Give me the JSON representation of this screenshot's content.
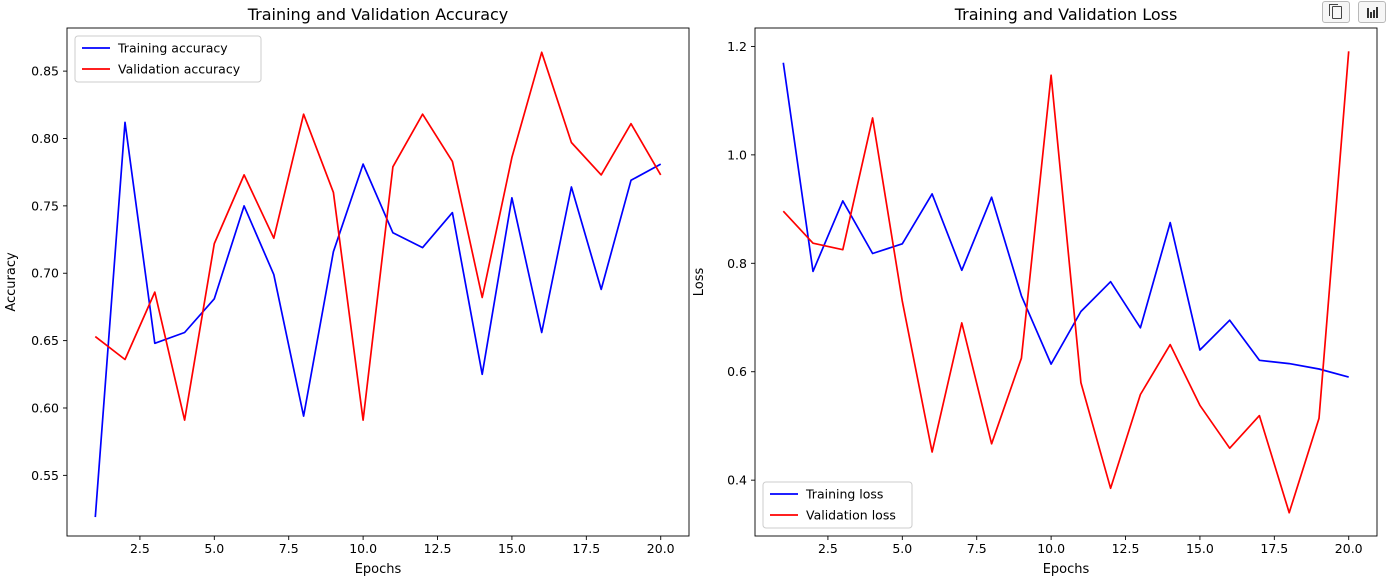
{
  "toolbar": {
    "copy_icon": "copy-icon",
    "chart_icon": "bar-chart-icon"
  },
  "chart_data": [
    {
      "type": "line",
      "title": "Training and Validation Accuracy",
      "xlabel": "Epochs",
      "ylabel": "Accuracy",
      "xlim": [
        0.05,
        20.95
      ],
      "ylim": [
        0.505,
        0.882
      ],
      "xticks": [
        2.5,
        5.0,
        7.5,
        10.0,
        12.5,
        15.0,
        17.5,
        20.0
      ],
      "xtick_labels": [
        "2.5",
        "5.0",
        "7.5",
        "10.0",
        "12.5",
        "15.0",
        "17.5",
        "20.0"
      ],
      "yticks": [
        0.55,
        0.6,
        0.65,
        0.7,
        0.75,
        0.8,
        0.85
      ],
      "ytick_labels": [
        "0.55",
        "0.60",
        "0.65",
        "0.70",
        "0.75",
        "0.80",
        "0.85"
      ],
      "grid": false,
      "legend_position": "top-left",
      "x": [
        1,
        2,
        3,
        4,
        5,
        6,
        7,
        8,
        9,
        10,
        11,
        12,
        13,
        14,
        15,
        16,
        17,
        18,
        19,
        20
      ],
      "series": [
        {
          "name": "Training accuracy",
          "color": "#0000ff",
          "values": [
            0.519,
            0.812,
            0.648,
            0.656,
            0.681,
            0.75,
            0.699,
            0.594,
            0.716,
            0.781,
            0.73,
            0.719,
            0.745,
            0.625,
            0.756,
            0.656,
            0.764,
            0.688,
            0.769,
            0.781
          ]
        },
        {
          "name": "Validation accuracy",
          "color": "#ff0000",
          "values": [
            0.653,
            0.636,
            0.686,
            0.591,
            0.722,
            0.773,
            0.726,
            0.818,
            0.76,
            0.591,
            0.779,
            0.818,
            0.783,
            0.682,
            0.786,
            0.864,
            0.797,
            0.773,
            0.811,
            0.773
          ]
        }
      ]
    },
    {
      "type": "line",
      "title": "Training and Validation Loss",
      "xlabel": "Epochs",
      "ylabel": "Loss",
      "xlim": [
        0.05,
        20.95
      ],
      "ylim": [
        0.297,
        1.234
      ],
      "xticks": [
        2.5,
        5.0,
        7.5,
        10.0,
        12.5,
        15.0,
        17.5,
        20.0
      ],
      "xtick_labels": [
        "2.5",
        "5.0",
        "7.5",
        "10.0",
        "12.5",
        "15.0",
        "17.5",
        "20.0"
      ],
      "yticks": [
        0.4,
        0.6,
        0.8,
        1.0,
        1.2
      ],
      "ytick_labels": [
        "0.4",
        "0.6",
        "0.8",
        "1.0",
        "1.2"
      ],
      "grid": false,
      "legend_position": "bottom-left",
      "x": [
        1,
        2,
        3,
        4,
        5,
        6,
        7,
        8,
        9,
        10,
        11,
        12,
        13,
        14,
        15,
        16,
        17,
        18,
        19,
        20
      ],
      "series": [
        {
          "name": "Training loss",
          "color": "#0000ff",
          "values": [
            1.17,
            0.785,
            0.915,
            0.818,
            0.836,
            0.928,
            0.787,
            0.922,
            0.74,
            0.614,
            0.711,
            0.766,
            0.681,
            0.875,
            0.64,
            0.695,
            0.621,
            0.615,
            0.605,
            0.59
          ]
        },
        {
          "name": "Validation loss",
          "color": "#ff0000",
          "values": [
            0.896,
            0.837,
            0.825,
            1.068,
            0.73,
            0.452,
            0.69,
            0.467,
            0.625,
            1.147,
            0.58,
            0.385,
            0.558,
            0.65,
            0.538,
            0.459,
            0.519,
            0.34,
            0.514,
            1.191
          ]
        }
      ]
    }
  ]
}
